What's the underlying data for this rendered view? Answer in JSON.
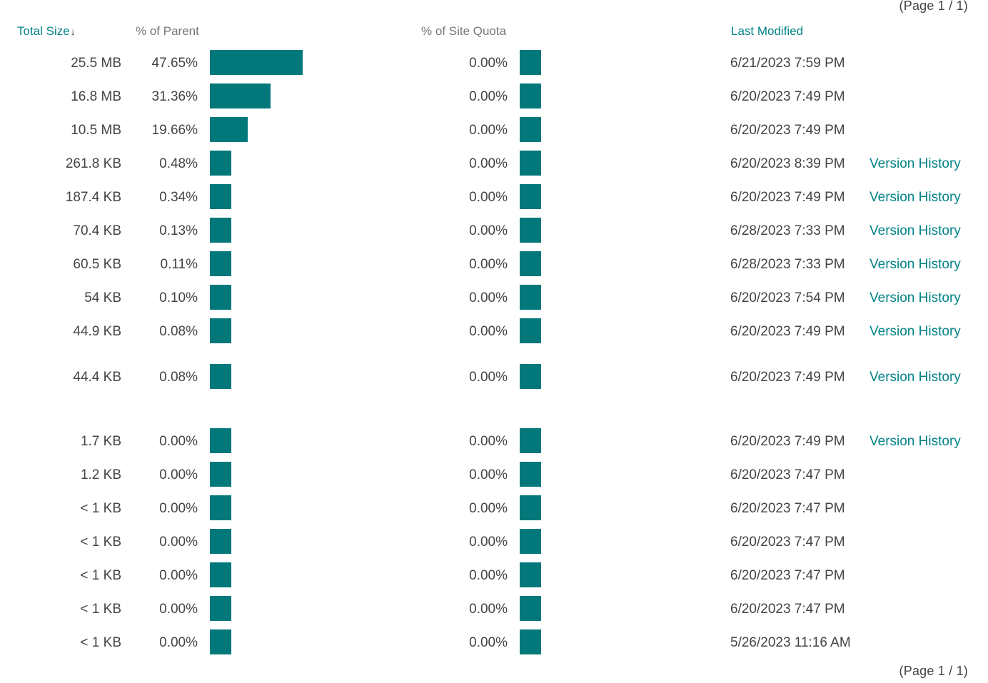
{
  "pager": {
    "top": "(Page 1 / 1)",
    "bottom": "(Page 1 / 1)"
  },
  "headers": {
    "total_size": "Total Size",
    "sort_indicator": "↓",
    "percent_parent": "% of Parent",
    "percent_quota": "% of Site Quota",
    "last_modified": "Last Modified"
  },
  "accent_color": "#038387",
  "bar_color": "#02787b",
  "rows": [
    {
      "size": "25.5 MB",
      "pct_parent": "47.65%",
      "parent_fraction": 0.4765,
      "pct_quota": "0.00%",
      "modified": "6/21/2023 7:59 PM",
      "link": ""
    },
    {
      "size": "16.8 MB",
      "pct_parent": "31.36%",
      "parent_fraction": 0.3136,
      "pct_quota": "0.00%",
      "modified": "6/20/2023 7:49 PM",
      "link": ""
    },
    {
      "size": "10.5 MB",
      "pct_parent": "19.66%",
      "parent_fraction": 0.1966,
      "pct_quota": "0.00%",
      "modified": "6/20/2023 7:49 PM",
      "link": ""
    },
    {
      "size": "261.8 KB",
      "pct_parent": "0.48%",
      "parent_fraction": 0.0048,
      "pct_quota": "0.00%",
      "modified": "6/20/2023 8:39 PM",
      "link": "Version History"
    },
    {
      "size": "187.4 KB",
      "pct_parent": "0.34%",
      "parent_fraction": 0.0034,
      "pct_quota": "0.00%",
      "modified": "6/20/2023 7:49 PM",
      "link": "Version History"
    },
    {
      "size": "70.4 KB",
      "pct_parent": "0.13%",
      "parent_fraction": 0.0013,
      "pct_quota": "0.00%",
      "modified": "6/28/2023 7:33 PM",
      "link": "Version History"
    },
    {
      "size": "60.5 KB",
      "pct_parent": "0.11%",
      "parent_fraction": 0.0011,
      "pct_quota": "0.00%",
      "modified": "6/28/2023 7:33 PM",
      "link": "Version History"
    },
    {
      "size": "54 KB",
      "pct_parent": "0.10%",
      "parent_fraction": 0.001,
      "pct_quota": "0.00%",
      "modified": "6/20/2023 7:54 PM",
      "link": "Version History"
    },
    {
      "size": "44.9 KB",
      "pct_parent": "0.08%",
      "parent_fraction": 0.0008,
      "pct_quota": "0.00%",
      "modified": "6/20/2023 7:49 PM",
      "link": "Version History"
    },
    {
      "size": "44.4 KB",
      "pct_parent": "0.08%",
      "parent_fraction": 0.0008,
      "pct_quota": "0.00%",
      "modified": "6/20/2023 7:49 PM",
      "link": "Version History"
    },
    {
      "size": "1.7 KB",
      "pct_parent": "0.00%",
      "parent_fraction": 0,
      "pct_quota": "0.00%",
      "modified": "6/20/2023 7:49 PM",
      "link": "Version History"
    },
    {
      "size": "1.2 KB",
      "pct_parent": "0.00%",
      "parent_fraction": 0,
      "pct_quota": "0.00%",
      "modified": "6/20/2023 7:47 PM",
      "link": ""
    },
    {
      "size": "< 1 KB",
      "pct_parent": "0.00%",
      "parent_fraction": 0,
      "pct_quota": "0.00%",
      "modified": "6/20/2023 7:47 PM",
      "link": ""
    },
    {
      "size": "< 1 KB",
      "pct_parent": "0.00%",
      "parent_fraction": 0,
      "pct_quota": "0.00%",
      "modified": "6/20/2023 7:47 PM",
      "link": ""
    },
    {
      "size": "< 1 KB",
      "pct_parent": "0.00%",
      "parent_fraction": 0,
      "pct_quota": "0.00%",
      "modified": "6/20/2023 7:47 PM",
      "link": ""
    },
    {
      "size": "< 1 KB",
      "pct_parent": "0.00%",
      "parent_fraction": 0,
      "pct_quota": "0.00%",
      "modified": "6/20/2023 7:47 PM",
      "link": ""
    },
    {
      "size": "< 1 KB",
      "pct_parent": "0.00%",
      "parent_fraction": 0,
      "pct_quota": "0.00%",
      "modified": "5/26/2023 11:16 AM",
      "link": ""
    }
  ]
}
